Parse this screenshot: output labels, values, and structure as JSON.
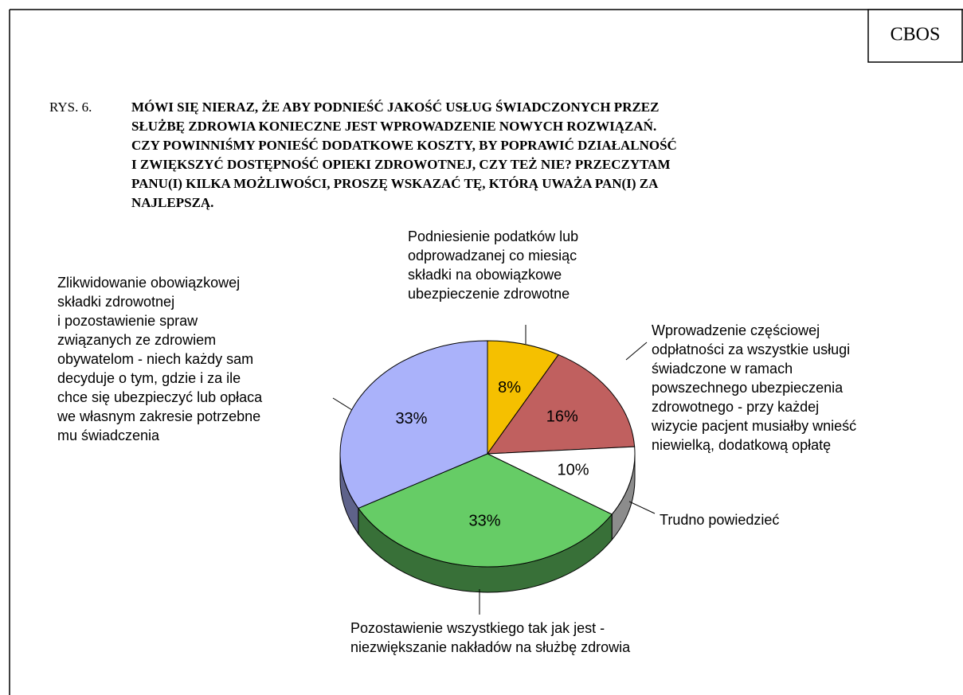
{
  "chart_data": {
    "type": "pie",
    "source": "CBOS",
    "figure_number": "RYS. 6.",
    "title_lines": [
      "MÓWI SIĘ NIERAZ, ŻE ABY PODNIEŚĆ JAKOŚĆ USŁUG ŚWIADCZONYCH PRZEZ",
      "SŁUŻBĘ ZDROWIA KONIECZNE JEST WPROWADZENIE NOWYCH ROZWIĄZAŃ.",
      "CZY POWINNIŚMY PONIEŚĆ DODATKOWE KOSZTY, BY POPRAWIĆ DZIAŁALNOŚĆ",
      "I ZWIĘKSZYĆ DOSTĘPNOŚĆ OPIEKI ZDROWOTNEJ, CZY TEŻ NIE? PRZECZYTAM",
      "PANU(I) KILKA MOŻLIWOŚCI, PROSZĘ WSKAZAĆ TĘ, KTÓRĄ UWAŻA PAN(I) ZA",
      "NAJLEPSZĄ."
    ],
    "categories": [
      [
        "Podniesienie podatków lub",
        "odprowadzanej co miesiąc",
        "składki na obowiązkowe",
        "ubezpieczenie zdrowotne"
      ],
      [
        "Wprowadzenie częściowej",
        "odpłatności za wszystkie usługi",
        "świadczone w ramach",
        "powszechnego ubezpieczenia",
        "zdrowotnego - przy każdej",
        "wizycie pacjent musiałby wnieść",
        "niewielką, dodatkową opłatę"
      ],
      [
        "Trudno powiedzieć"
      ],
      [
        "Pozostawienie wszystkiego tak jak jest -",
        "niezwiększanie nakładów na służbę zdrowia"
      ],
      [
        "Zlikwidowanie obowiązkowej",
        "składki zdrowotnej",
        "i pozostawienie spraw",
        "związanych ze zdrowiem",
        "obywatelom - niech każdy sam",
        "decyduje o tym, gdzie i za ile",
        "chce się ubezpieczyć lub opłaca",
        "we własnym zakresie potrzebne",
        "mu świadczenia"
      ]
    ],
    "values": [
      8,
      16,
      10,
      33,
      33
    ],
    "value_labels": [
      "8%",
      "16%",
      "10%",
      "33%",
      "33%"
    ],
    "colors": [
      "#f5c000",
      "#c0605f",
      "#ffffff",
      "#66cc66",
      "#aab2fa"
    ]
  }
}
